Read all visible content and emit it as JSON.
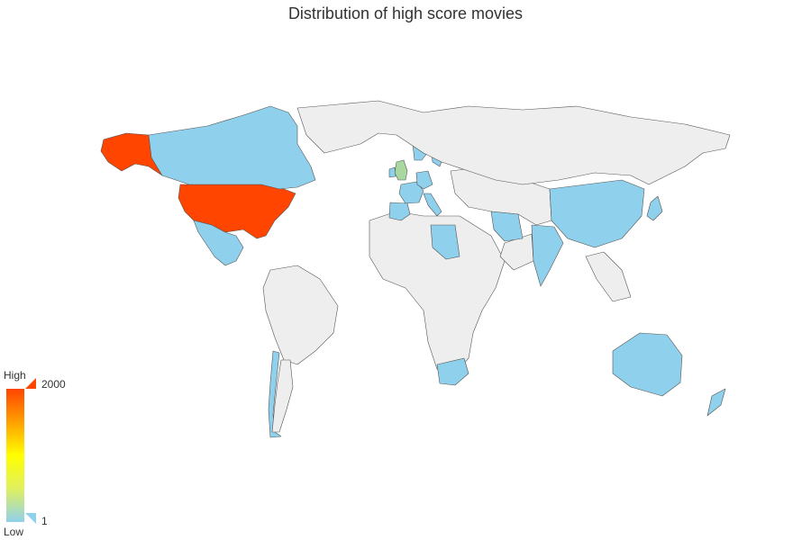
{
  "title": "Distribution of high score movies",
  "visual_map": {
    "high_text": "High",
    "low_text": "Low",
    "max_label": "2000",
    "min_label": "1",
    "max": 2000,
    "min": 1,
    "colors": [
      "#8fd1ec",
      "#e0f060",
      "#ffff00",
      "#ffa000",
      "#ff4500"
    ]
  },
  "colors": {
    "no_data": "#eeeeee",
    "border": "#555555"
  },
  "chart_data": {
    "type": "choropleth",
    "title": "Distribution of high score movies",
    "value_range": [
      1,
      2000
    ],
    "regions": [
      {
        "name": "United States",
        "level": "high"
      },
      {
        "name": "United Kingdom",
        "level": "medium-low"
      },
      {
        "name": "Canada",
        "level": "low"
      },
      {
        "name": "Mexico",
        "level": "low"
      },
      {
        "name": "Brazil",
        "level": "none"
      },
      {
        "name": "Chile",
        "level": "low"
      },
      {
        "name": "Argentina",
        "level": "none"
      },
      {
        "name": "Ireland",
        "level": "low"
      },
      {
        "name": "France",
        "level": "low"
      },
      {
        "name": "Spain",
        "level": "low"
      },
      {
        "name": "Italy",
        "level": "low"
      },
      {
        "name": "Germany",
        "level": "low"
      },
      {
        "name": "Norway",
        "level": "low"
      },
      {
        "name": "Sweden",
        "level": "low"
      },
      {
        "name": "Libya",
        "level": "low"
      },
      {
        "name": "Iran",
        "level": "low"
      },
      {
        "name": "India",
        "level": "low"
      },
      {
        "name": "China",
        "level": "low"
      },
      {
        "name": "Japan",
        "level": "low"
      },
      {
        "name": "South Africa",
        "level": "low"
      },
      {
        "name": "Australia",
        "level": "low"
      },
      {
        "name": "New Zealand",
        "level": "low"
      },
      {
        "name": "Russia",
        "level": "none"
      }
    ]
  }
}
